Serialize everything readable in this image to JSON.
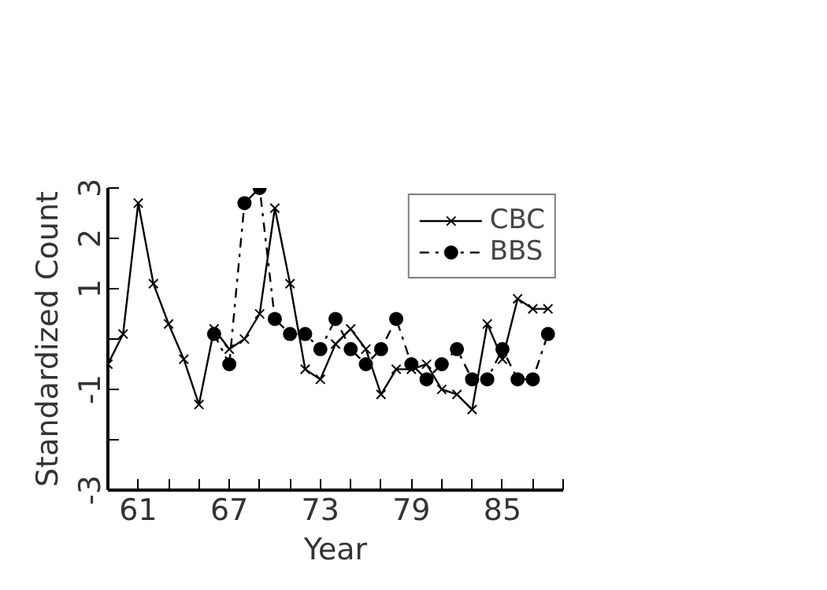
{
  "chart_data": {
    "type": "line",
    "xlabel": "Year",
    "ylabel": "Standardized Count",
    "xlim": [
      59,
      89
    ],
    "ylim": [
      -3,
      3
    ],
    "xticks": [
      {
        "value": 59,
        "label": null
      },
      61,
      {
        "value": 63,
        "label": null
      },
      {
        "value": 65,
        "label": null
      },
      67,
      {
        "value": 69,
        "label": null
      },
      {
        "value": 71,
        "label": null
      },
      73,
      {
        "value": 75,
        "label": null
      },
      {
        "value": 77,
        "label": null
      },
      79,
      {
        "value": 81,
        "label": null
      },
      {
        "value": 83,
        "label": null
      },
      85,
      {
        "value": 87,
        "label": null
      },
      {
        "value": 89,
        "label": null
      }
    ],
    "yticks": [
      -3,
      {
        "value": -2,
        "label": null
      },
      -1,
      {
        "value": 0,
        "label": null
      },
      1,
      2,
      3
    ],
    "legend": "top right",
    "grid": false,
    "series": [
      {
        "name": "CBC",
        "color": "#000000",
        "marker": "cross",
        "line_style": "solid",
        "x": [
          59,
          60,
          61,
          62,
          63,
          64,
          65,
          66,
          67,
          68,
          69,
          70,
          71,
          72,
          73,
          74,
          75,
          76,
          77,
          78,
          79,
          80,
          81,
          82,
          83,
          84,
          85,
          86,
          87,
          88
        ],
        "values": [
          -0.5,
          0.1,
          2.7,
          1.1,
          0.3,
          -0.4,
          -1.3,
          0.2,
          -0.2,
          0.0,
          0.5,
          2.6,
          1.1,
          -0.6,
          -0.8,
          -0.1,
          0.2,
          -0.2,
          -1.1,
          -0.6,
          -0.6,
          -0.5,
          -1.0,
          -1.1,
          -1.4,
          0.3,
          -0.4,
          0.8,
          0.6,
          0.6
        ]
      },
      {
        "name": "BBS",
        "color": "#000000",
        "marker": "circle",
        "line_style": "dashdot",
        "x": [
          66,
          67,
          68,
          69,
          70,
          71,
          72,
          73,
          74,
          75,
          76,
          77,
          78,
          79,
          80,
          81,
          82,
          83,
          84,
          85,
          86,
          87,
          88
        ],
        "values": [
          0.1,
          -0.5,
          2.7,
          3.0,
          0.4,
          0.1,
          0.1,
          -0.2,
          0.4,
          -0.2,
          -0.5,
          -0.2,
          0.4,
          -0.5,
          -0.8,
          -0.5,
          -0.2,
          -0.8,
          -0.8,
          -0.2,
          -0.8,
          -0.8,
          0.1
        ]
      }
    ]
  }
}
